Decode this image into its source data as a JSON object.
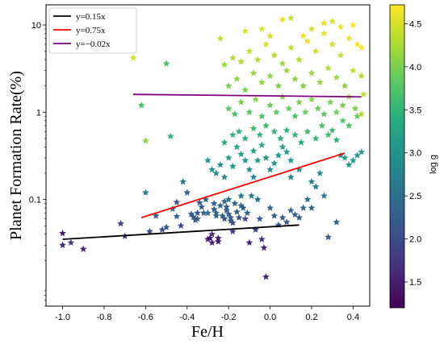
{
  "chart_data": {
    "type": "scatter",
    "xlabel": "Fe/H",
    "ylabel": "Planet Formation Rate(%)",
    "x_ticks": [
      "-1.0",
      "-0.8",
      "-0.6",
      "-0.4",
      "-0.2",
      "0.0",
      "0.2",
      "0.4"
    ],
    "x_tick_values": [
      -1.0,
      -0.8,
      -0.6,
      -0.4,
      -0.2,
      0.0,
      0.2,
      0.4
    ],
    "xlim": [
      -1.08,
      0.48
    ],
    "ylim": [
      0.006,
      17
    ],
    "y_scale": "log",
    "y_ticks": [
      "0.1",
      "1",
      "10"
    ],
    "y_tick_values": [
      0.1,
      1,
      10
    ],
    "legend": {
      "placement": "top-left"
    },
    "grid": false,
    "colorbar": {
      "label": "log g",
      "range": [
        1.2,
        4.72
      ],
      "ticks": [
        "1.5",
        "2.0",
        "2.5",
        "3.0",
        "3.5",
        "4.0",
        "4.5"
      ],
      "tick_values": [
        1.5,
        2.0,
        2.5,
        3.0,
        3.5,
        4.0,
        4.5
      ],
      "colormap": "viridis"
    },
    "lines": [
      {
        "name": "y=0.15x",
        "color": "#000000",
        "x": [
          -1.0,
          0.14
        ],
        "y": [
          0.035,
          0.051
        ]
      },
      {
        "name": "y=0.75x",
        "color": "#ff0000",
        "x": [
          -0.62,
          0.36
        ],
        "y": [
          0.062,
          0.34
        ]
      },
      {
        "name": "y=−0.02x",
        "color": "#800080",
        "x": [
          -0.66,
          0.44
        ],
        "y": [
          1.6,
          1.5
        ]
      }
    ],
    "points": [
      [
        -1.0,
        0.041,
        1.5
      ],
      [
        -1.0,
        0.03,
        1.6
      ],
      [
        -0.96,
        0.032,
        1.8
      ],
      [
        -0.9,
        0.027,
        1.6
      ],
      [
        -0.72,
        0.053,
        1.9
      ],
      [
        -0.7,
        0.038,
        1.8
      ],
      [
        -0.66,
        4.2,
        4.5
      ],
      [
        -0.62,
        1.2,
        3.7
      ],
      [
        -0.6,
        0.47,
        4.1
      ],
      [
        -0.6,
        0.12,
        2.6
      ],
      [
        -0.58,
        0.043,
        2.0
      ],
      [
        -0.55,
        0.065,
        2.2
      ],
      [
        -0.52,
        0.045,
        2.0
      ],
      [
        -0.5,
        0.048,
        2.2
      ],
      [
        -0.5,
        3.6,
        3.7
      ],
      [
        -0.48,
        0.53,
        3.5
      ],
      [
        -0.47,
        0.078,
        2.4
      ],
      [
        -0.45,
        0.093,
        2.1
      ],
      [
        -0.45,
        0.064,
        2.3
      ],
      [
        -0.43,
        0.05,
        2.0
      ],
      [
        -0.42,
        0.16,
        2.6
      ],
      [
        -0.4,
        0.12,
        2.2
      ],
      [
        -0.38,
        0.068,
        2.2
      ],
      [
        -0.37,
        0.063,
        2.2
      ],
      [
        -0.36,
        0.058,
        2.1
      ],
      [
        -0.35,
        0.07,
        2.2
      ],
      [
        -0.35,
        0.06,
        2.3
      ],
      [
        -0.34,
        0.092,
        2.3
      ],
      [
        -0.33,
        0.082,
        2.2
      ],
      [
        -0.32,
        0.07,
        2.3
      ],
      [
        -0.31,
        0.1,
        2.5
      ],
      [
        -0.3,
        0.07,
        2.4
      ],
      [
        -0.3,
        0.035,
        1.6
      ],
      [
        -0.29,
        0.036,
        1.4
      ],
      [
        -0.28,
        0.04,
        1.6
      ],
      [
        -0.28,
        0.032,
        1.5
      ],
      [
        -0.27,
        0.09,
        2.3
      ],
      [
        -0.27,
        0.077,
        2.2
      ],
      [
        -0.26,
        0.065,
        2.3
      ],
      [
        -0.26,
        0.07,
        2.4
      ],
      [
        -0.25,
        0.033,
        1.5
      ],
      [
        -0.25,
        0.036,
        1.5
      ],
      [
        -0.24,
        0.085,
        2.4
      ],
      [
        -0.23,
        0.065,
        2.3
      ],
      [
        -0.22,
        0.06,
        2.2
      ],
      [
        -0.22,
        0.095,
        2.4
      ],
      [
        -0.21,
        0.075,
        2.3
      ],
      [
        -0.21,
        0.082,
        2.2
      ],
      [
        -0.2,
        0.1,
        2.5
      ],
      [
        -0.2,
        0.068,
        2.3
      ],
      [
        -0.19,
        0.062,
        2.2
      ],
      [
        -0.19,
        0.057,
        2.2
      ],
      [
        -0.18,
        0.054,
        2.0
      ],
      [
        -0.18,
        0.043,
        1.9
      ],
      [
        -0.17,
        0.09,
        2.3
      ],
      [
        -0.16,
        0.072,
        2.2
      ],
      [
        -0.15,
        0.062,
        2.1
      ],
      [
        -0.14,
        0.085,
        2.4
      ],
      [
        -0.14,
        0.11,
        2.6
      ],
      [
        -0.13,
        0.08,
        2.3
      ],
      [
        -0.12,
        0.06,
        2.1
      ],
      [
        -0.11,
        0.07,
        2.3
      ],
      [
        -0.1,
        0.032,
        1.6
      ],
      [
        -0.09,
        0.11,
        2.7
      ],
      [
        -0.08,
        0.18,
        2.8
      ],
      [
        -0.07,
        0.045,
        1.9
      ],
      [
        -0.06,
        0.1,
        2.5
      ],
      [
        -0.05,
        0.06,
        2.2
      ],
      [
        -0.04,
        0.035,
        1.7
      ],
      [
        -0.03,
        0.028,
        1.6
      ],
      [
        -0.02,
        0.013,
        1.6
      ],
      [
        0.0,
        0.08,
        2.4
      ],
      [
        0.02,
        0.065,
        2.2
      ],
      [
        0.04,
        0.051,
        2.1
      ],
      [
        0.06,
        0.062,
        2.2
      ],
      [
        0.08,
        0.055,
        2.2
      ],
      [
        0.1,
        0.075,
        2.3
      ],
      [
        0.12,
        0.067,
        2.3
      ],
      [
        0.14,
        0.062,
        2.2
      ],
      [
        0.16,
        0.08,
        2.4
      ],
      [
        0.18,
        0.1,
        2.6
      ],
      [
        0.2,
        0.08,
        2.4
      ],
      [
        0.1,
        0.18,
        2.8
      ],
      [
        0.14,
        0.22,
        3.0
      ],
      [
        0.2,
        0.16,
        2.8
      ],
      [
        0.22,
        0.14,
        2.7
      ],
      [
        0.24,
        0.2,
        2.9
      ],
      [
        0.26,
        0.11,
        2.6
      ],
      [
        0.28,
        0.037,
        2.2
      ],
      [
        0.32,
        0.055,
        2.3
      ],
      [
        0.36,
        0.3,
        3.1
      ],
      [
        0.34,
        0.32,
        3.0
      ],
      [
        0.38,
        0.25,
        3.1
      ],
      [
        0.4,
        0.28,
        3.1
      ],
      [
        0.42,
        0.32,
        3.1
      ],
      [
        0.44,
        0.35,
        3.2
      ],
      [
        -0.3,
        0.28,
        3.1
      ],
      [
        -0.28,
        0.22,
        3.0
      ],
      [
        -0.26,
        0.2,
        2.9
      ],
      [
        -0.24,
        0.25,
        3.0
      ],
      [
        -0.22,
        0.18,
        2.9
      ],
      [
        -0.2,
        0.3,
        3.2
      ],
      [
        -0.18,
        0.24,
        3.1
      ],
      [
        -0.16,
        0.4,
        3.3
      ],
      [
        -0.14,
        0.33,
        3.2
      ],
      [
        -0.12,
        0.28,
        3.1
      ],
      [
        -0.1,
        0.22,
        3.0
      ],
      [
        -0.08,
        0.36,
        3.2
      ],
      [
        -0.06,
        0.28,
        3.1
      ],
      [
        -0.04,
        0.42,
        3.3
      ],
      [
        -0.02,
        0.3,
        3.1
      ],
      [
        0.0,
        0.22,
        3.0
      ],
      [
        0.02,
        0.26,
        3.1
      ],
      [
        0.04,
        0.32,
        3.1
      ],
      [
        0.06,
        0.4,
        3.2
      ],
      [
        0.08,
        0.35,
        3.2
      ],
      [
        0.1,
        0.28,
        3.1
      ],
      [
        -0.22,
        0.45,
        3.4
      ],
      [
        -0.18,
        0.55,
        3.5
      ],
      [
        -0.15,
        0.6,
        3.5
      ],
      [
        -0.12,
        0.5,
        3.4
      ],
      [
        -0.08,
        0.65,
        3.6
      ],
      [
        -0.05,
        0.55,
        3.5
      ],
      [
        -0.02,
        0.7,
        3.6
      ],
      [
        0.02,
        0.6,
        3.5
      ],
      [
        0.05,
        0.5,
        3.4
      ],
      [
        0.08,
        0.62,
        3.5
      ],
      [
        0.12,
        0.55,
        3.5
      ],
      [
        0.15,
        0.45,
        3.4
      ],
      [
        0.18,
        0.6,
        3.6
      ],
      [
        0.22,
        0.5,
        3.5
      ],
      [
        0.25,
        0.7,
        3.7
      ],
      [
        0.28,
        0.55,
        3.6
      ],
      [
        0.3,
        0.62,
        3.6
      ],
      [
        0.32,
        0.48,
        3.5
      ],
      [
        0.35,
        0.8,
        3.8
      ],
      [
        0.38,
        0.7,
        3.7
      ],
      [
        0.42,
        0.9,
        3.9
      ],
      [
        -0.2,
        1.1,
        3.8
      ],
      [
        -0.17,
        0.95,
        3.7
      ],
      [
        -0.14,
        1.3,
        4.0
      ],
      [
        -0.1,
        1.0,
        3.8
      ],
      [
        -0.07,
        1.4,
        4.1
      ],
      [
        -0.04,
        0.9,
        3.7
      ],
      [
        0.0,
        1.2,
        3.9
      ],
      [
        0.03,
        1.0,
        3.8
      ],
      [
        0.06,
        1.5,
        4.1
      ],
      [
        0.09,
        1.1,
        3.9
      ],
      [
        0.12,
        0.9,
        3.7
      ],
      [
        0.14,
        1.3,
        4.0
      ],
      [
        0.17,
        1.0,
        3.9
      ],
      [
        0.2,
        1.4,
        4.1
      ],
      [
        0.23,
        1.1,
        3.9
      ],
      [
        0.26,
        0.95,
        3.8
      ],
      [
        0.29,
        1.3,
        4.0
      ],
      [
        0.32,
        1.0,
        3.9
      ],
      [
        0.35,
        1.2,
        4.0
      ],
      [
        0.38,
        1.5,
        4.2
      ],
      [
        0.41,
        1.1,
        4.0
      ],
      [
        0.44,
        0.95,
        4.3
      ],
      [
        0.45,
        1.6,
        4.4
      ],
      [
        -0.2,
        2.0,
        4.0
      ],
      [
        -0.16,
        2.4,
        4.1
      ],
      [
        -0.12,
        1.8,
        4.0
      ],
      [
        -0.08,
        2.8,
        4.2
      ],
      [
        -0.04,
        2.2,
        4.1
      ],
      [
        0.0,
        2.6,
        4.1
      ],
      [
        0.04,
        2.0,
        4.0
      ],
      [
        0.08,
        3.0,
        4.2
      ],
      [
        0.12,
        2.4,
        4.1
      ],
      [
        0.16,
        2.0,
        4.0
      ],
      [
        0.2,
        2.8,
        4.2
      ],
      [
        0.24,
        2.2,
        4.1
      ],
      [
        0.28,
        3.2,
        4.3
      ],
      [
        0.32,
        2.5,
        4.2
      ],
      [
        0.36,
        2.0,
        4.1
      ],
      [
        0.4,
        3.0,
        4.4
      ],
      [
        0.44,
        2.6,
        4.3
      ],
      [
        -0.22,
        3.5,
        4.2
      ],
      [
        -0.18,
        4.2,
        4.3
      ],
      [
        -0.14,
        3.8,
        4.3
      ],
      [
        -0.1,
        5.0,
        4.4
      ],
      [
        -0.06,
        4.0,
        4.3
      ],
      [
        -0.02,
        6.0,
        4.5
      ],
      [
        0.02,
        4.5,
        4.3
      ],
      [
        0.06,
        3.6,
        4.2
      ],
      [
        0.1,
        5.5,
        4.4
      ],
      [
        0.14,
        4.0,
        4.3
      ],
      [
        0.18,
        6.5,
        4.6
      ],
      [
        0.22,
        5.0,
        4.5
      ],
      [
        0.26,
        8.0,
        4.6
      ],
      [
        0.3,
        6.0,
        4.5
      ],
      [
        0.34,
        4.5,
        4.4
      ],
      [
        0.38,
        7.0,
        4.6
      ],
      [
        0.42,
        6.0,
        4.7
      ],
      [
        0.44,
        5.5,
        4.7
      ],
      [
        -0.24,
        7.0,
        4.4
      ],
      [
        -0.12,
        8.5,
        4.5
      ],
      [
        0.0,
        7.5,
        4.5
      ],
      [
        0.1,
        12.0,
        4.4
      ],
      [
        0.2,
        9.0,
        4.5
      ],
      [
        0.3,
        11.0,
        4.5
      ],
      [
        0.34,
        9.5,
        4.6
      ],
      [
        0.4,
        10.0,
        4.7
      ],
      [
        -0.04,
        9.0,
        4.5
      ],
      [
        0.06,
        11.5,
        4.6
      ],
      [
        0.16,
        7.5,
        4.6
      ],
      [
        0.26,
        10.5,
        4.6
      ]
    ]
  }
}
